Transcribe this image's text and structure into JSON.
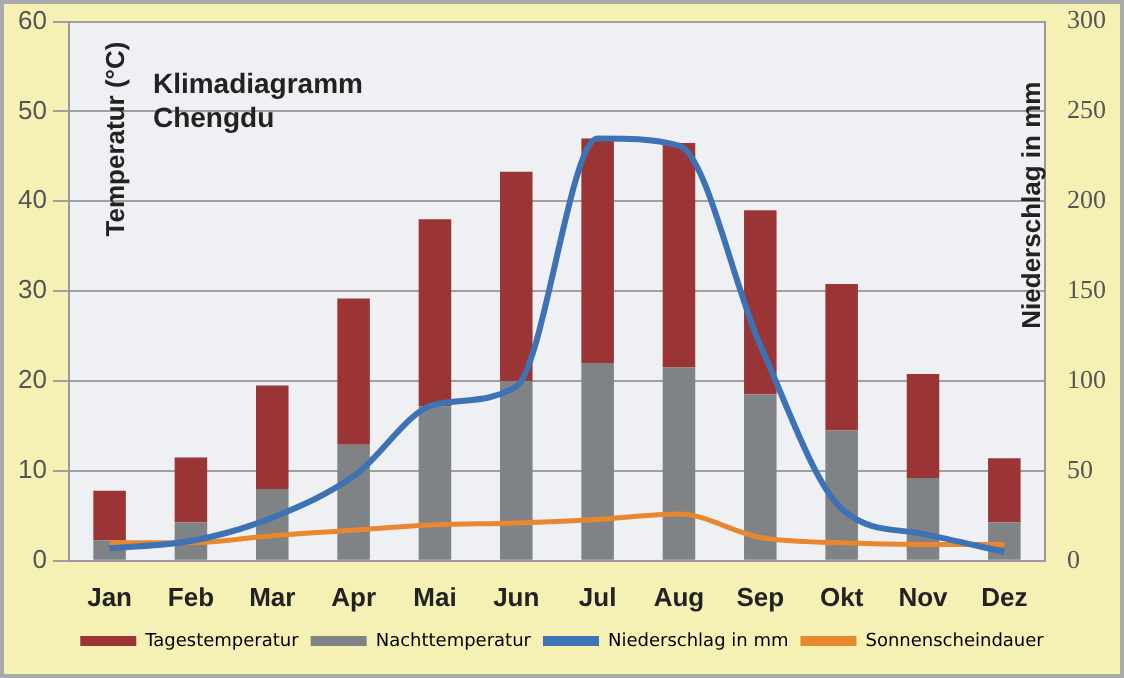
{
  "chart_data": {
    "type": "bar",
    "title": "Klimadiagramm\nChengdu",
    "ylabel": "Temperatur (°C)",
    "y2label": "Niederschlag in mm",
    "categories": [
      "Jan",
      "Feb",
      "Mar",
      "Apr",
      "Mai",
      "Jun",
      "Jul",
      "Aug",
      "Sep",
      "Okt",
      "Nov",
      "Dez"
    ],
    "series": [
      {
        "name": "Nachttemperatur",
        "color": "#7f8385",
        "values": [
          2.3,
          4.3,
          8,
          12.9,
          17.2,
          20,
          22,
          21.5,
          18.5,
          14.5,
          9.2,
          4.3
        ]
      },
      {
        "name": "Tagestemperatur",
        "color": "#9b3535",
        "values": [
          5.5,
          7.2,
          11.5,
          16.3,
          20.8,
          23.3,
          25,
          25,
          20.5,
          16.3,
          11.6,
          7.1
        ]
      },
      {
        "name": "Niederschlag in mm",
        "type": "line",
        "axis": "y2",
        "color": "#3d72b4",
        "values": [
          7,
          11,
          24,
          47,
          87,
          97,
          235,
          231,
          120,
          29,
          15,
          5
        ]
      },
      {
        "name": "Sonnenscheindauer",
        "type": "line",
        "axis": "y2",
        "color": "#e8872e",
        "values": [
          10,
          10,
          14,
          17,
          20,
          21,
          23,
          26,
          13,
          10,
          9,
          9
        ]
      }
    ],
    "ylim": [
      0,
      60
    ],
    "yticks": [
      0,
      10,
      20,
      30,
      40,
      50,
      60
    ],
    "y2lim": [
      0,
      300
    ],
    "y2ticks": [
      0,
      50,
      100,
      150,
      200,
      250,
      300
    ],
    "stacked": true,
    "grid": "y",
    "legend": "bottom",
    "marker": "none"
  }
}
